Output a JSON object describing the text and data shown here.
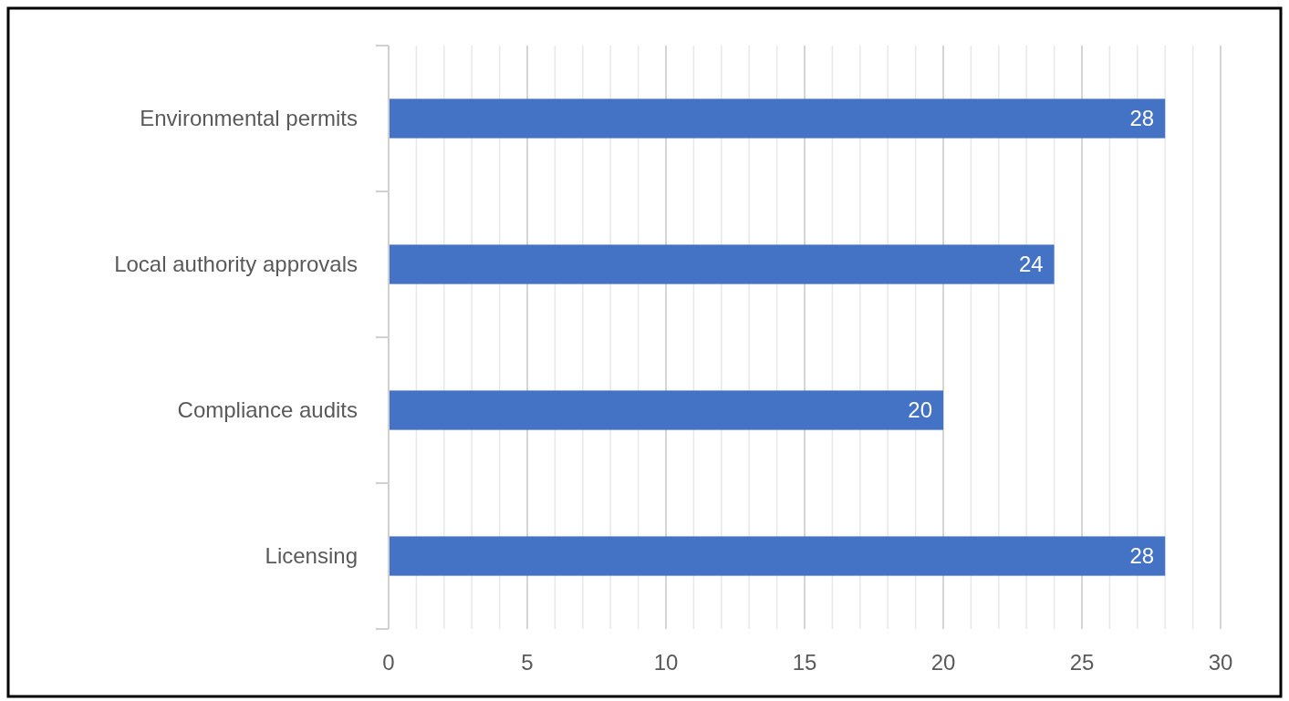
{
  "chart_data": {
    "type": "bar",
    "orientation": "horizontal",
    "categories": [
      "Environmental permits",
      "Local authority approvals",
      "Compliance audits",
      "Licensing"
    ],
    "values": [
      28,
      24,
      20,
      28
    ],
    "color": "#4472c4",
    "data_labels": true,
    "grid": "x",
    "xlim": [
      0,
      30
    ],
    "xticks": [
      0,
      {
        "value": 1,
        "label": null
      },
      {
        "value": 2,
        "label": null
      },
      {
        "value": 3,
        "label": null
      },
      {
        "value": 4,
        "label": null
      },
      5,
      {
        "value": 6,
        "label": null
      },
      {
        "value": 7,
        "label": null
      },
      {
        "value": 8,
        "label": null
      },
      {
        "value": 9,
        "label": null
      },
      10,
      {
        "value": 11,
        "label": null
      },
      {
        "value": 12,
        "label": null
      },
      {
        "value": 13,
        "label": null
      },
      {
        "value": 14,
        "label": null
      },
      15,
      {
        "value": 16,
        "label": null
      },
      {
        "value": 17,
        "label": null
      },
      {
        "value": 18,
        "label": null
      },
      {
        "value": 19,
        "label": null
      },
      20,
      {
        "value": 21,
        "label": null
      },
      {
        "value": 22,
        "label": null
      },
      {
        "value": 23,
        "label": null
      },
      {
        "value": 24,
        "label": null
      },
      25,
      {
        "value": 26,
        "label": null
      },
      {
        "value": 27,
        "label": null
      },
      {
        "value": 28,
        "label": null
      },
      {
        "value": 29,
        "label": null
      },
      30
    ]
  }
}
